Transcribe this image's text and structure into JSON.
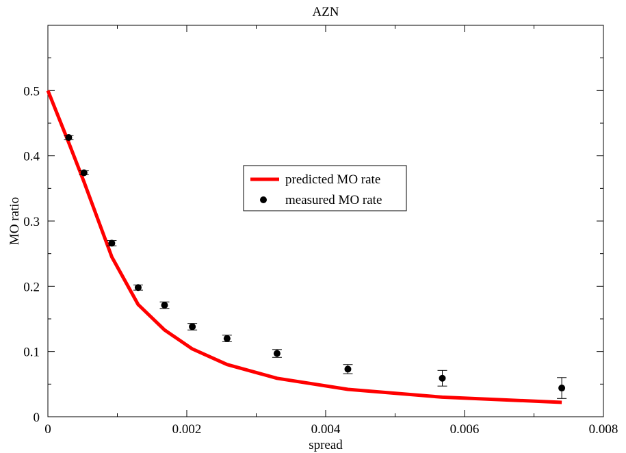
{
  "chart_data": {
    "type": "line",
    "title": "AZN",
    "xlabel": "spread",
    "ylabel": "MO ratio",
    "xlim": [
      0,
      0.008
    ],
    "ylim": [
      0,
      0.6
    ],
    "x_ticks": [
      0,
      0.002,
      0.004,
      0.006,
      0.008
    ],
    "x_tick_labels": [
      "0",
      "0.002",
      "0.004",
      "0.006",
      "0.008"
    ],
    "y_ticks": [
      0,
      0.1,
      0.2,
      0.3,
      0.4,
      0.5
    ],
    "y_tick_labels": [
      "0",
      "0.1",
      "0.2",
      "0.3",
      "0.4",
      "0.5"
    ],
    "grid": false,
    "legend_position": "center",
    "series": [
      {
        "name": "predicted MO rate",
        "kind": "line",
        "color": "#ff0000",
        "x": [
          0,
          0.0003,
          0.00052,
          0.00092,
          0.0013,
          0.00168,
          0.00208,
          0.00258,
          0.0033,
          0.00432,
          0.00568,
          0.0074
        ],
        "y": [
          0.5,
          0.42,
          0.36,
          0.245,
          0.172,
          0.133,
          0.104,
          0.08,
          0.059,
          0.042,
          0.03,
          0.022
        ]
      },
      {
        "name": "measured MO rate",
        "kind": "scatter",
        "color": "#000000",
        "x": [
          0.0003,
          0.00052,
          0.00092,
          0.0013,
          0.00168,
          0.00208,
          0.00258,
          0.0033,
          0.00432,
          0.00568,
          0.0074
        ],
        "y": [
          0.428,
          0.374,
          0.266,
          0.198,
          0.171,
          0.138,
          0.12,
          0.097,
          0.073,
          0.059,
          0.044
        ],
        "error": [
          0.003,
          0.003,
          0.004,
          0.004,
          0.005,
          0.005,
          0.005,
          0.006,
          0.007,
          0.012,
          0.016
        ]
      }
    ]
  }
}
